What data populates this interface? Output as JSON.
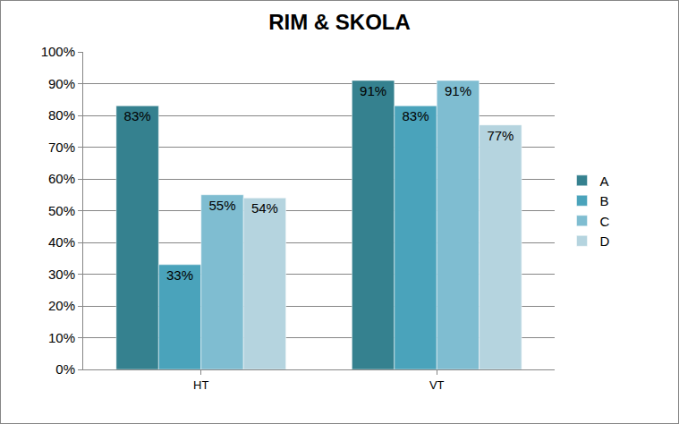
{
  "chart_data": {
    "type": "bar",
    "title": "RIM & SKOLA",
    "categories": [
      "HT",
      "VT"
    ],
    "series": [
      {
        "name": "A",
        "color": "#35818f",
        "values": [
          83,
          91
        ],
        "value_labels": [
          "83%",
          "91%"
        ]
      },
      {
        "name": "B",
        "color": "#4aa3bb",
        "values": [
          33,
          83
        ],
        "value_labels": [
          "33%",
          "83%"
        ]
      },
      {
        "name": "C",
        "color": "#7fbdd1",
        "values": [
          55,
          91
        ],
        "value_labels": [
          "55%",
          "91%"
        ]
      },
      {
        "name": "D",
        "color": "#b5d4df",
        "values": [
          54,
          77
        ],
        "value_labels": [
          "54%",
          "77%"
        ]
      }
    ],
    "ylim": [
      0,
      100
    ],
    "yticks": [
      {
        "value": 0,
        "label": "0%"
      },
      {
        "value": 10,
        "label": "10%"
      },
      {
        "value": 20,
        "label": "20%"
      },
      {
        "value": 30,
        "label": "30%"
      },
      {
        "value": 40,
        "label": "40%"
      },
      {
        "value": 50,
        "label": "50%"
      },
      {
        "value": 60,
        "label": "60%"
      },
      {
        "value": 70,
        "label": "70%"
      },
      {
        "value": 80,
        "label": "80%"
      },
      {
        "value": 90,
        "label": "90%"
      },
      {
        "value": 100,
        "label": "100%"
      }
    ],
    "grid": true,
    "legend": "right",
    "data_labels": true
  }
}
